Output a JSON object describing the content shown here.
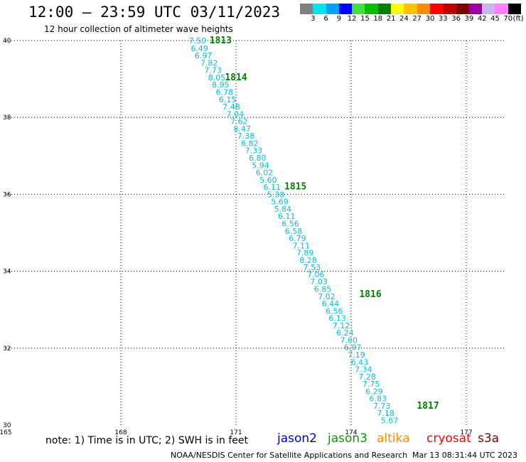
{
  "header": {
    "title": "12:00 – 23:59 UTC 03/11/2023",
    "subtitle": "12 hour collection of altimeter wave heights"
  },
  "legend": {
    "unit": "(ft)",
    "labels": [
      "3",
      "6",
      "9",
      "12",
      "15",
      "18",
      "21",
      "24",
      "27",
      "30",
      "33",
      "36",
      "39",
      "42",
      "45",
      "70"
    ],
    "colors": [
      "#808080",
      "#00e5ee",
      "#00a0ff",
      "#0000ff",
      "#40e040",
      "#00c000",
      "#008000",
      "#ffff00",
      "#ffc000",
      "#ff8c00",
      "#ff0000",
      "#c00000",
      "#800000",
      "#a000a0",
      "#c8b4f0",
      "#ff80ff",
      "#000000"
    ]
  },
  "note": "note:  1) Time is in UTC;  2) SWH is in feet",
  "satellites": [
    {
      "name": "jason2",
      "color": "#0000cc"
    },
    {
      "name": "jason3",
      "color": "#00a000"
    },
    {
      "name": "altika",
      "color": "#ff8c00"
    },
    {
      "name": "cryosat",
      "color": "#ff0000"
    },
    {
      "name": "s3a",
      "color": "#800000"
    }
  ],
  "footer": {
    "left": "NOAA/NESDIS Center for Satellite Applications and Research",
    "right": "Mar 13 08:31:44 UTC 2023"
  },
  "chart_data": {
    "type": "scatter",
    "xlim": [
      165,
      178
    ],
    "ylim": [
      30,
      40
    ],
    "x_ticks": [
      165,
      168,
      171,
      174,
      177
    ],
    "x_tick_labels": [
      "165",
      "168",
      "171",
      "174",
      "177"
    ],
    "y_ticks": [
      30,
      32,
      34,
      36,
      38,
      40
    ],
    "y_tick_labels": [
      "30",
      "32",
      "34",
      "36",
      "38",
      "40"
    ],
    "grid": true,
    "point_color": "#00bfdf",
    "time_color": "#008000",
    "points": [
      {
        "lon": 170.0,
        "lat": 40.0,
        "swh": "7.50"
      },
      {
        "lon": 170.05,
        "lat": 39.8,
        "swh": "6.49"
      },
      {
        "lon": 170.15,
        "lat": 39.61,
        "swh": "6.97"
      },
      {
        "lon": 170.3,
        "lat": 39.42,
        "swh": "7.82"
      },
      {
        "lon": 170.4,
        "lat": 39.23,
        "swh": "7.73"
      },
      {
        "lon": 170.5,
        "lat": 39.04,
        "swh": "8.05"
      },
      {
        "lon": 170.6,
        "lat": 38.85,
        "swh": "8.95"
      },
      {
        "lon": 170.7,
        "lat": 38.66,
        "swh": "6.78"
      },
      {
        "lon": 170.78,
        "lat": 38.47,
        "swh": "6.15"
      },
      {
        "lon": 170.88,
        "lat": 38.28,
        "swh": "7.48"
      },
      {
        "lon": 170.98,
        "lat": 38.09,
        "swh": "7.04"
      },
      {
        "lon": 171.08,
        "lat": 37.9,
        "swh": "7.62"
      },
      {
        "lon": 171.16,
        "lat": 37.71,
        "swh": "8.47"
      },
      {
        "lon": 171.26,
        "lat": 37.52,
        "swh": "7.38"
      },
      {
        "lon": 171.36,
        "lat": 37.33,
        "swh": "6.82"
      },
      {
        "lon": 171.46,
        "lat": 37.14,
        "swh": "7.33"
      },
      {
        "lon": 171.56,
        "lat": 36.95,
        "swh": "6.80"
      },
      {
        "lon": 171.64,
        "lat": 36.76,
        "swh": "5.94"
      },
      {
        "lon": 171.74,
        "lat": 36.57,
        "swh": "6.02"
      },
      {
        "lon": 171.84,
        "lat": 36.38,
        "swh": "5.60"
      },
      {
        "lon": 171.94,
        "lat": 36.19,
        "swh": "6.11"
      },
      {
        "lon": 172.04,
        "lat": 36.0,
        "swh": "5.38"
      },
      {
        "lon": 172.14,
        "lat": 35.81,
        "swh": "5.69"
      },
      {
        "lon": 172.22,
        "lat": 35.62,
        "swh": "5.84"
      },
      {
        "lon": 172.32,
        "lat": 35.43,
        "swh": "6.11"
      },
      {
        "lon": 172.42,
        "lat": 35.24,
        "swh": "6.56"
      },
      {
        "lon": 172.5,
        "lat": 35.05,
        "swh": "6.58"
      },
      {
        "lon": 172.6,
        "lat": 34.86,
        "swh": "6.79"
      },
      {
        "lon": 172.7,
        "lat": 34.67,
        "swh": "7.11"
      },
      {
        "lon": 172.8,
        "lat": 34.48,
        "swh": "7.89"
      },
      {
        "lon": 172.88,
        "lat": 34.29,
        "swh": "8.28"
      },
      {
        "lon": 172.98,
        "lat": 34.1,
        "swh": "7.53"
      },
      {
        "lon": 173.08,
        "lat": 33.92,
        "swh": "7.06"
      },
      {
        "lon": 173.16,
        "lat": 33.73,
        "swh": "7.03"
      },
      {
        "lon": 173.26,
        "lat": 33.54,
        "swh": "6.85"
      },
      {
        "lon": 173.36,
        "lat": 33.35,
        "swh": "7.02"
      },
      {
        "lon": 173.46,
        "lat": 33.16,
        "swh": "6.44"
      },
      {
        "lon": 173.56,
        "lat": 32.97,
        "swh": "6.56"
      },
      {
        "lon": 173.64,
        "lat": 32.78,
        "swh": "6.13"
      },
      {
        "lon": 173.74,
        "lat": 32.59,
        "swh": "7.12"
      },
      {
        "lon": 173.84,
        "lat": 32.4,
        "swh": "6.24"
      },
      {
        "lon": 173.94,
        "lat": 32.21,
        "swh": "7.60"
      },
      {
        "lon": 174.04,
        "lat": 32.02,
        "swh": "6.97"
      },
      {
        "lon": 174.14,
        "lat": 31.83,
        "swh": "7.19"
      },
      {
        "lon": 174.22,
        "lat": 31.64,
        "swh": "6.43"
      },
      {
        "lon": 174.32,
        "lat": 31.45,
        "swh": "7.34"
      },
      {
        "lon": 174.42,
        "lat": 31.26,
        "swh": "7.28"
      },
      {
        "lon": 174.52,
        "lat": 31.07,
        "swh": "7.75"
      },
      {
        "lon": 174.6,
        "lat": 30.88,
        "swh": "6.29"
      },
      {
        "lon": 174.7,
        "lat": 30.69,
        "swh": "6.83"
      },
      {
        "lon": 174.8,
        "lat": 30.5,
        "swh": "7.73"
      },
      {
        "lon": 174.9,
        "lat": 30.31,
        "swh": "7.18"
      },
      {
        "lon": 175.0,
        "lat": 30.12,
        "swh": "5.67"
      }
    ],
    "time_labels": [
      {
        "lon": 170.6,
        "lat": 40.0,
        "text": "1813"
      },
      {
        "lon": 171.0,
        "lat": 39.04,
        "text": "1814"
      },
      {
        "lon": 172.55,
        "lat": 36.2,
        "text": "1815"
      },
      {
        "lon": 174.5,
        "lat": 33.4,
        "text": "1816"
      },
      {
        "lon": 176.0,
        "lat": 30.5,
        "text": "1817"
      }
    ]
  }
}
